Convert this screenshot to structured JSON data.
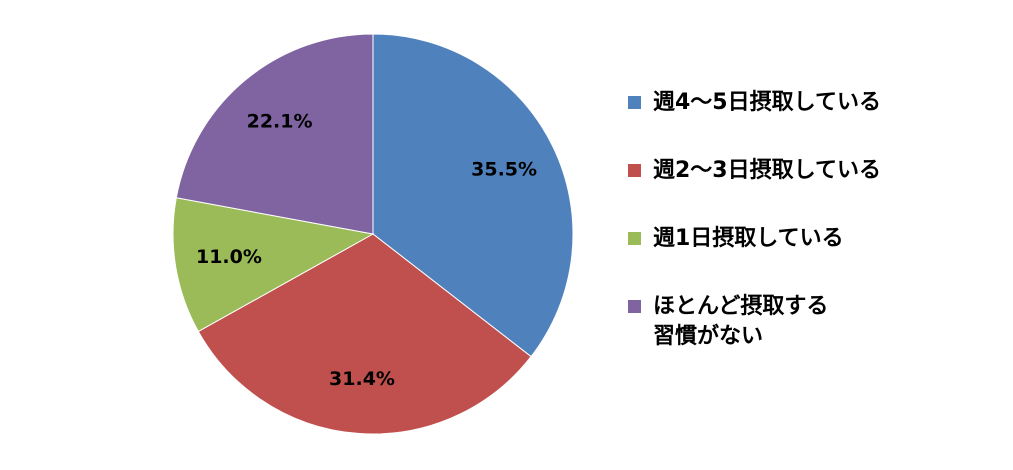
{
  "chart_data": {
    "type": "pie",
    "categories": [
      "週4～5日摂取している",
      "週2～3日摂取している",
      "週1日摂取している",
      "ほとんど摂取する\n習慣がない"
    ],
    "values": [
      35.5,
      31.4,
      11.0,
      22.1
    ],
    "value_labels": [
      "35.5%",
      "31.4%",
      "11.0%",
      "22.1%"
    ],
    "colors": [
      "#4f81bd",
      "#c0504d",
      "#9bbb59",
      "#8064a2"
    ],
    "legend": "right"
  }
}
